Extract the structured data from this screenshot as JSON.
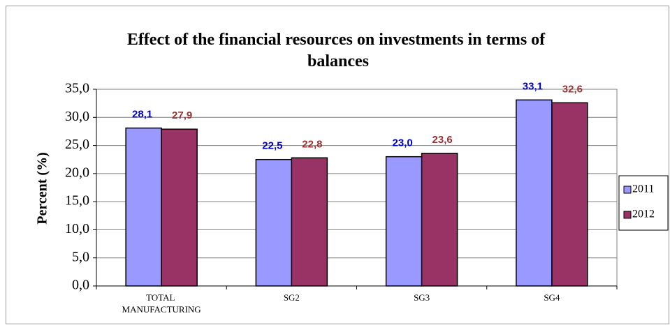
{
  "chart_data": {
    "type": "bar",
    "title": "Effect of the financial resources on investments in terms of balances",
    "ylabel": "Percent (%)",
    "categories": [
      "TOTAL MANUFACTURING",
      "SG2",
      "SG3",
      "SG4"
    ],
    "series": [
      {
        "name": "2011",
        "color": "#9999ff",
        "label_color": "#0000cc",
        "values": [
          28.1,
          22.5,
          23.0,
          33.1
        ],
        "value_labels": [
          "28,1",
          "22,5",
          "23,0",
          "33,1"
        ]
      },
      {
        "name": "2012",
        "color": "#993366",
        "label_color": "#993333",
        "values": [
          27.9,
          22.8,
          23.6,
          32.6
        ],
        "value_labels": [
          "27,9",
          "22,8",
          "23,6",
          "32,6"
        ]
      }
    ],
    "ylim": [
      0,
      35
    ],
    "yticks": [
      {
        "value": 0,
        "label": "0,0"
      },
      {
        "value": 5,
        "label": "5,0"
      },
      {
        "value": 10,
        "label": "10,0"
      },
      {
        "value": 15,
        "label": "15,0"
      },
      {
        "value": 20,
        "label": "20,0"
      },
      {
        "value": 25,
        "label": "25,0"
      },
      {
        "value": 30,
        "label": "30,0"
      },
      {
        "value": 35,
        "label": "35,0"
      }
    ],
    "grid": true,
    "legend": "right"
  }
}
